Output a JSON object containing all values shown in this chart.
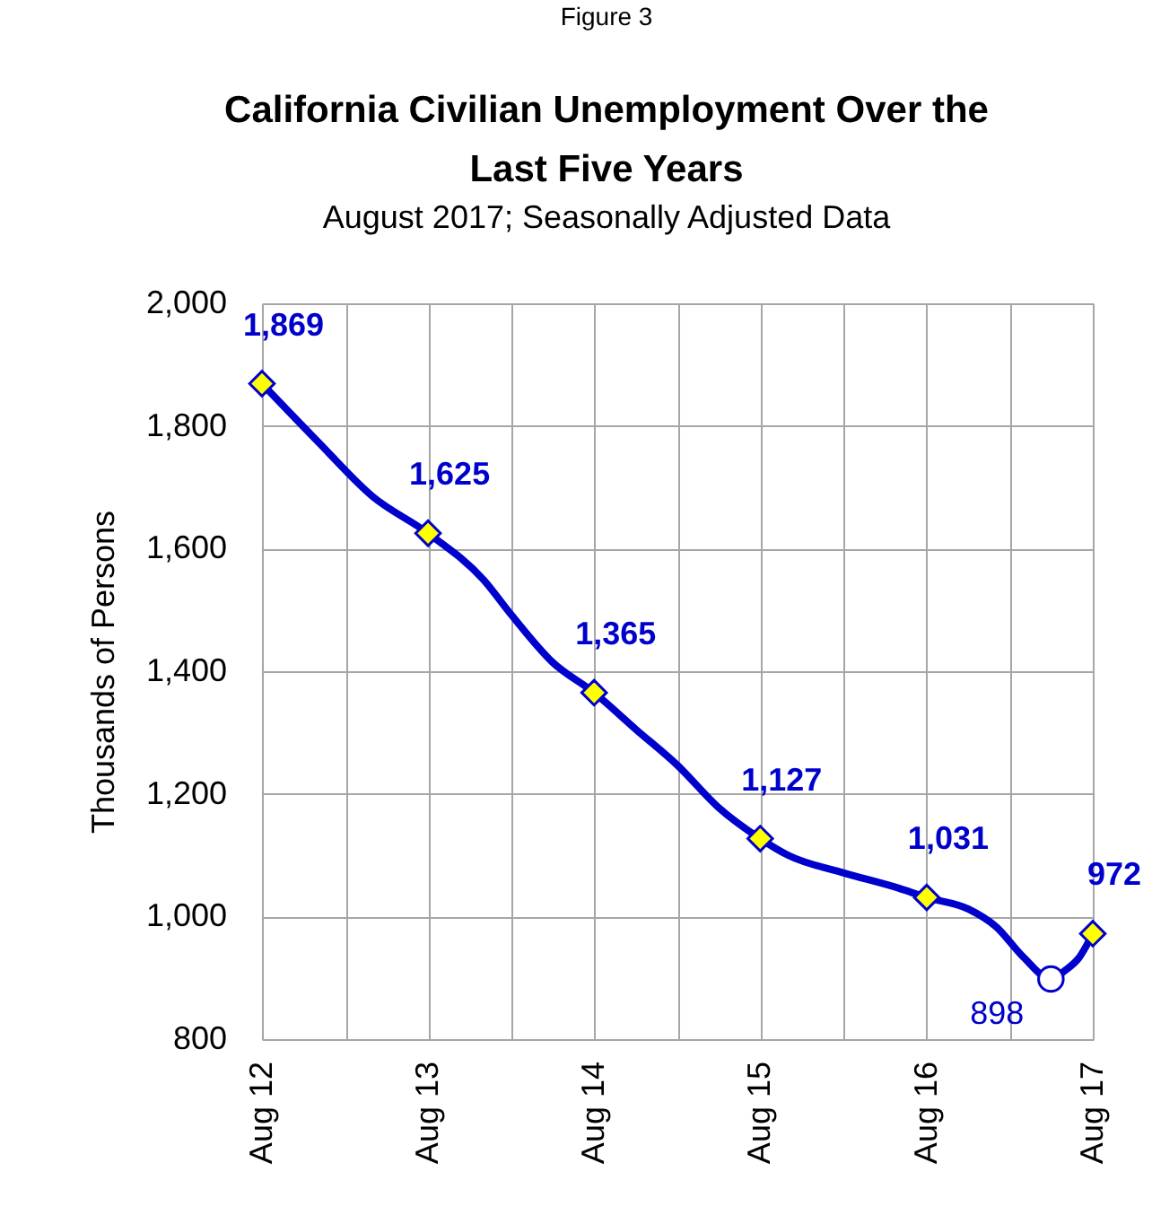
{
  "chart_data": {
    "type": "line",
    "title": "California Civilian Unemployment Over the Last Five Years",
    "subtitle": "August 2017; Seasonally Adjusted Data",
    "ylabel": "Thousands of Persons",
    "annotations": [
      "Figure 3"
    ],
    "xlim": [
      "2012-08",
      "2017-08"
    ],
    "xticks": [
      {
        "value": "2012-08",
        "label": "Aug 12"
      },
      {
        "value": "2013-02",
        "label": null
      },
      {
        "value": "2013-08",
        "label": "Aug 13"
      },
      {
        "value": "2014-02",
        "label": null
      },
      {
        "value": "2014-08",
        "label": "Aug 14"
      },
      {
        "value": "2015-02",
        "label": null
      },
      {
        "value": "2015-08",
        "label": "Aug 15"
      },
      {
        "value": "2016-02",
        "label": null
      },
      {
        "value": "2016-08",
        "label": "Aug 16"
      },
      {
        "value": "2017-02",
        "label": null
      },
      {
        "value": "2017-08",
        "label": "Aug 17"
      }
    ],
    "ylim": [
      800,
      2000
    ],
    "yticks": [
      800,
      {
        "value": 1000,
        "label": "1,000"
      },
      {
        "value": 1200,
        "label": "1,200"
      },
      {
        "value": 1400,
        "label": "1,400"
      },
      {
        "value": 1600,
        "label": "1,600"
      },
      {
        "value": 1800,
        "label": "1,800"
      },
      {
        "value": 2000,
        "label": "2,000"
      }
    ],
    "grid": true,
    "line_style": "solid",
    "series": [
      {
        "color": "#0000cc",
        "marker": "none",
        "x": [
          "2012-08",
          "2012-12",
          "2013-04",
          "2013-08",
          "2013-12",
          "2014-02",
          "2014-05",
          "2014-08",
          "2014-11",
          "2015-02",
          "2015-05",
          "2015-08",
          "2015-10",
          "2016-02",
          "2016-06",
          "2016-08",
          "2016-11",
          "2017-01",
          "2017-03",
          "2017-05",
          "2017-06",
          "2017-07",
          "2017-08"
        ],
        "values": [
          1869,
          1775,
          1685,
          1625,
          1549,
          1491,
          1415,
          1365,
          1305,
          1246,
          1178,
          1127,
          1100,
          1071,
          1046,
          1031,
          1012,
          983,
          934,
          898,
          912,
          932,
          972
        ]
      },
      {
        "type": "scatter",
        "color": "#ffff00",
        "marker": "diamond",
        "x": [
          "2012-08",
          "2013-08",
          "2014-08",
          "2015-08",
          "2016-08",
          "2017-08"
        ],
        "values": [
          1869,
          1625,
          1365,
          1127,
          1031,
          972
        ],
        "value_labels": [
          "1,869",
          "1,625",
          "1,365",
          "1,127",
          "1,031",
          "972"
        ]
      },
      {
        "type": "scatter",
        "color": "#ffffff",
        "marker": "circle",
        "x": [
          "2017-05"
        ],
        "values": [
          898
        ],
        "value_labels": [
          "898"
        ]
      }
    ]
  }
}
